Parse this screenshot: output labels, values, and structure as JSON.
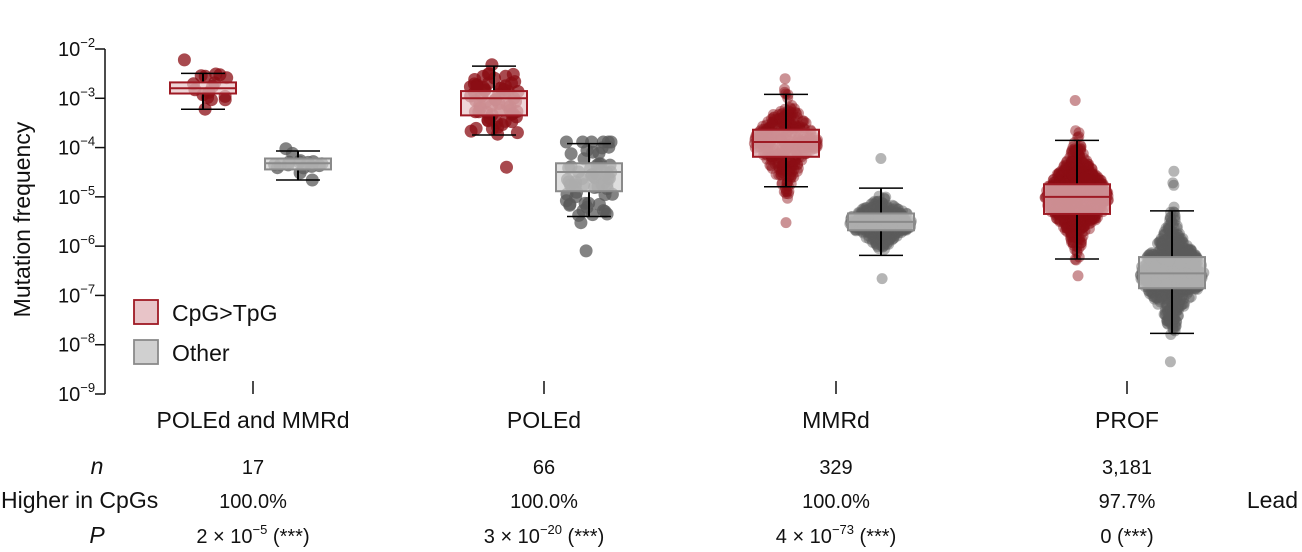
{
  "chart_data": {
    "type": "box-swarm",
    "ylabel": "Mutation frequency",
    "yscale": "log",
    "ylim": [
      1e-09,
      0.01
    ],
    "yticks": [
      {
        "base": "10",
        "exp": "-2"
      },
      {
        "base": "10",
        "exp": "-3"
      },
      {
        "base": "10",
        "exp": "-4"
      },
      {
        "base": "10",
        "exp": "-5"
      },
      {
        "base": "10",
        "exp": "-6"
      },
      {
        "base": "10",
        "exp": "-7"
      },
      {
        "base": "10",
        "exp": "-8"
      },
      {
        "base": "10",
        "exp": "-9"
      }
    ],
    "categories": [
      "POLEd and MMRd",
      "POLEd",
      "MMRd",
      "PROF"
    ],
    "legend": [
      {
        "name": "CpG>TpG",
        "fill": "#e8c4c8",
        "stroke": "#9e1a24"
      },
      {
        "name": "Other",
        "fill": "#d0d0d0",
        "stroke": "#8a8a8a"
      }
    ],
    "legend_position": "lower-left",
    "series": [
      {
        "name": "CpG>TpG",
        "point_color": "#8b0d14",
        "boxes": [
          {
            "q1": 0.00125,
            "median": 0.0016,
            "q3": 0.0021,
            "whisker_low": 0.0006,
            "whisker_high": 0.0032,
            "min": 0.0006,
            "max": 0.006,
            "n_points": 17
          },
          {
            "q1": 0.00045,
            "median": 0.001,
            "q3": 0.0014,
            "whisker_low": 0.00018,
            "whisker_high": 0.0045,
            "min": 4e-05,
            "max": 0.0048,
            "n_points": 66
          },
          {
            "q1": 6.5e-05,
            "median": 0.00013,
            "q3": 0.00023,
            "whisker_low": 1.6e-05,
            "whisker_high": 0.0012,
            "min": 3e-06,
            "max": 0.0025,
            "n_points": 329
          },
          {
            "q1": 4.5e-06,
            "median": 1e-05,
            "q3": 1.8e-05,
            "whisker_low": 5.5e-07,
            "whisker_high": 0.00014,
            "min": 2.5e-07,
            "max": 0.0009,
            "n_points": 3181
          }
        ]
      },
      {
        "name": "Other",
        "point_color": "#5a5a5a",
        "boxes": [
          {
            "q1": 3.6e-05,
            "median": 4.8e-05,
            "q3": 6e-05,
            "whisker_low": 2.2e-05,
            "whisker_high": 8.5e-05,
            "min": 2.2e-05,
            "max": 9.5e-05,
            "n_points": 17
          },
          {
            "q1": 1.3e-05,
            "median": 3.2e-05,
            "q3": 4.8e-05,
            "whisker_low": 4e-06,
            "whisker_high": 0.00012,
            "min": 8e-07,
            "max": 0.00013,
            "n_points": 66
          },
          {
            "q1": 2.1e-06,
            "median": 3.1e-06,
            "q3": 4.6e-06,
            "whisker_low": 6.5e-07,
            "whisker_high": 1.5e-05,
            "min": 2.2e-07,
            "max": 6e-05,
            "n_points": 329
          },
          {
            "q1": 1.4e-07,
            "median": 2.8e-07,
            "q3": 6e-07,
            "whisker_low": 1.7e-08,
            "whisker_high": 5.2e-06,
            "min": 4.5e-09,
            "max": 3.3e-05,
            "n_points": 3181
          }
        ]
      }
    ]
  },
  "stats": {
    "row_labels": {
      "n": "n",
      "higher": "Higher in CpGs",
      "p": "P"
    },
    "n": [
      "17",
      "66",
      "329",
      "3,181"
    ],
    "higher": [
      "100.0%",
      "100.0%",
      "100.0%",
      "97.7%"
    ],
    "p": [
      {
        "mant": "2 × 10",
        "exp": "−5",
        "sig": " (***)"
      },
      {
        "mant": "3 × 10",
        "exp": "−20",
        "sig": " (***)"
      },
      {
        "mant": "4 × 10",
        "exp": "−73",
        "sig": " (***)"
      },
      {
        "mant": "0",
        "exp": "",
        "sig": " (***)"
      }
    ],
    "trailing_label": "Lead"
  }
}
